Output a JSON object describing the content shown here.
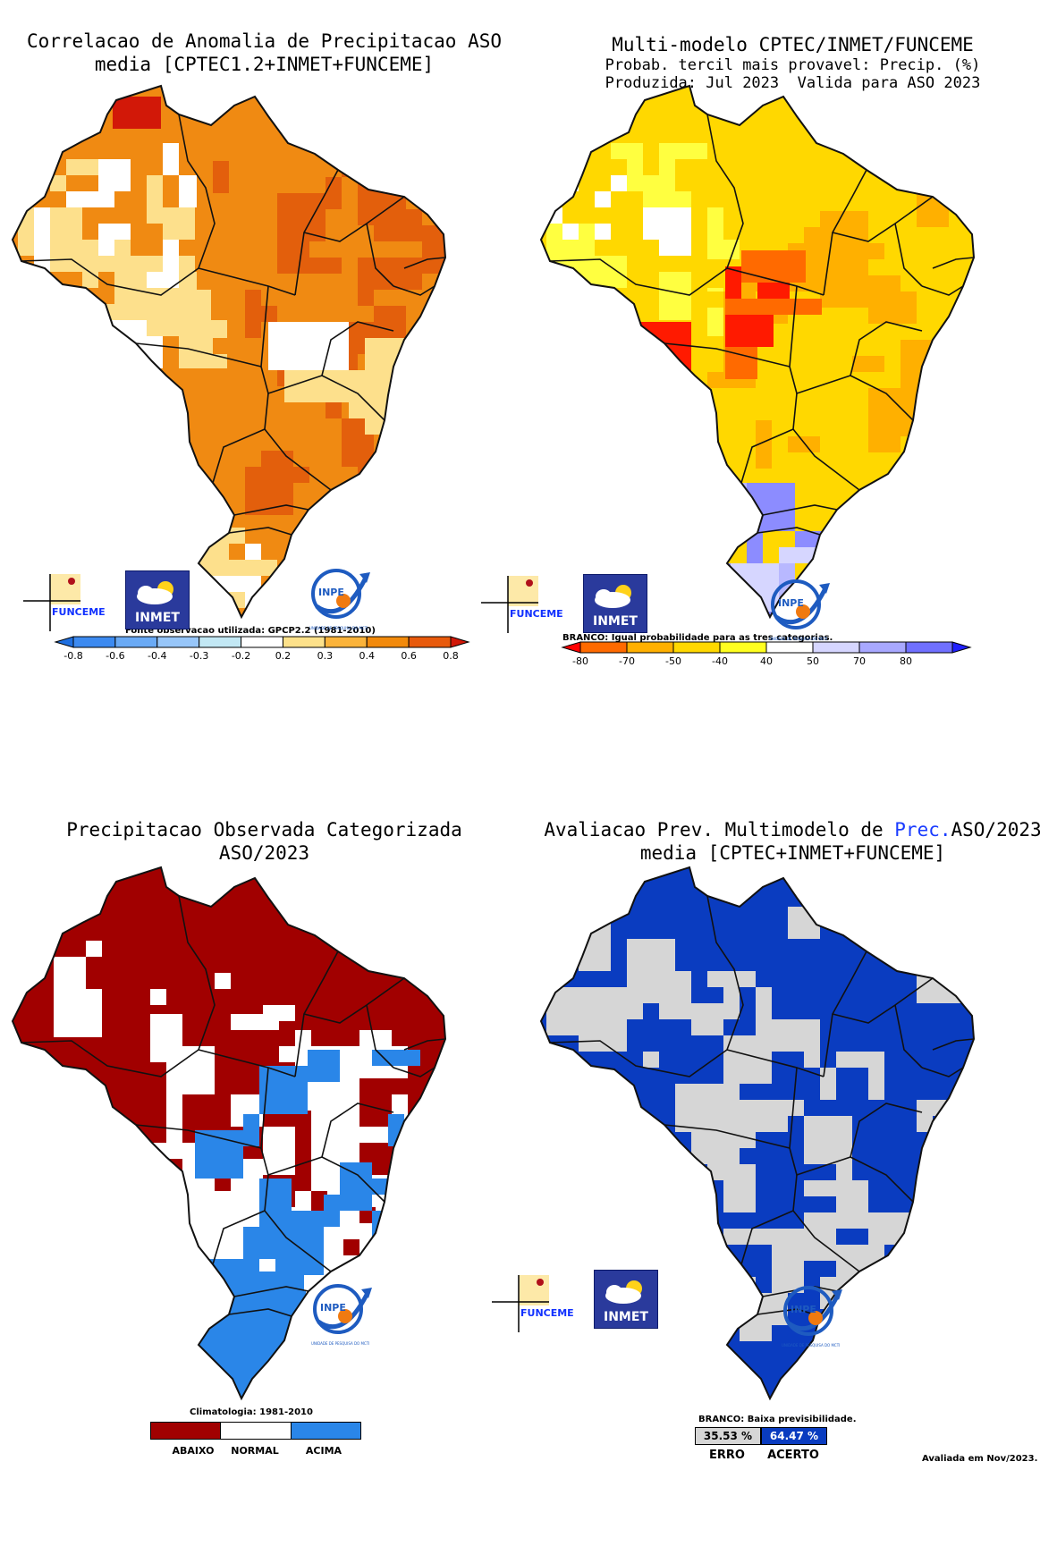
{
  "panels": {
    "p1": {
      "title_line1": "Correlacao de Anomalia de Precipitacao ASO",
      "title_line2": "media [CPTEC1.2+INMET+FUNCEME]",
      "note": "Fonte observacao utilizada: GPCP2.2 (1981-2010)",
      "legend_ticks": [
        "-0.8",
        "-0.6",
        "-0.4",
        "-0.3",
        "-0.2",
        "0.2",
        "0.3",
        "0.4",
        "0.6",
        "0.8"
      ],
      "legend_colors": [
        "#1f6fe0",
        "#3c8af0",
        "#6aaaf5",
        "#97c6f9",
        "#c2e8f4",
        "#ffffff",
        "#fde18a",
        "#fbb33a",
        "#f28a0c",
        "#e85a0c",
        "#d21808"
      ]
    },
    "p2": {
      "title_line1": "Multi-modelo CPTEC/INMET/FUNCEME",
      "title_line2": "Probab. tercil mais provavel: Precip. (%)",
      "title_line3": "Produzida: Jul 2023  Valida para ASO 2023",
      "note": "BRANCO: Igual probabilidade para as tres categorias.",
      "legend_ticks": [
        "-80",
        "-70",
        "-50",
        "-40",
        "40",
        "50",
        "70",
        "80"
      ],
      "legend_colors": [
        "#ff0000",
        "#ff6a00",
        "#ffb000",
        "#ffd800",
        "#ffff20",
        "#ffffff",
        "#d6d6ff",
        "#a8a8ff",
        "#7070ff",
        "#2020ff"
      ]
    },
    "p3": {
      "title_line1": "Precipitacao Observada Categorizada",
      "title_line2": "ASO/2023",
      "note": "Climatologia: 1981-2010",
      "categories": [
        "ABAIXO",
        "NORMAL",
        "ACIMA"
      ],
      "category_colors": [
        "#a10000",
        "#ffffff",
        "#2a86e8"
      ]
    },
    "p4": {
      "title_prefix": "Avaliacao Prev. Multimodelo de ",
      "title_highlight": "Prec.",
      "title_suffix": "ASO/2023",
      "title_line2": "media [CPTEC+INMET+FUNCEME]",
      "note": "BRANCO: Baixa previsibilidade.",
      "erro_value": "35.53 %",
      "acerto_value": "64.47 %",
      "erro_label": "ERRO",
      "acerto_label": "ACERTO",
      "evaluated": "Avaliada em Nov/2023.",
      "colors": {
        "erro": "#d6d6d6",
        "acerto": "#0a3cc0"
      }
    }
  },
  "logos": {
    "funceme": "FUNCEME",
    "inmet": "INMET",
    "inpe": "INPE",
    "inpe_caption": "UNIDADE DE PESQUISA DO MCTI"
  },
  "colors": {
    "p1_fill": "#f08a12",
    "p1_dark": "#e35f0c",
    "p1_light": "#fde08c",
    "p2_fill": "#ffd800",
    "p2_orange": "#ffb000",
    "p2_red": "#ff1a00",
    "p2_blue": "#b8b8ff",
    "p3_fill": "#a10000",
    "p3_blue": "#2a86e8",
    "p4_fill": "#0a3cc0",
    "p4_grey": "#d6d6d6"
  }
}
